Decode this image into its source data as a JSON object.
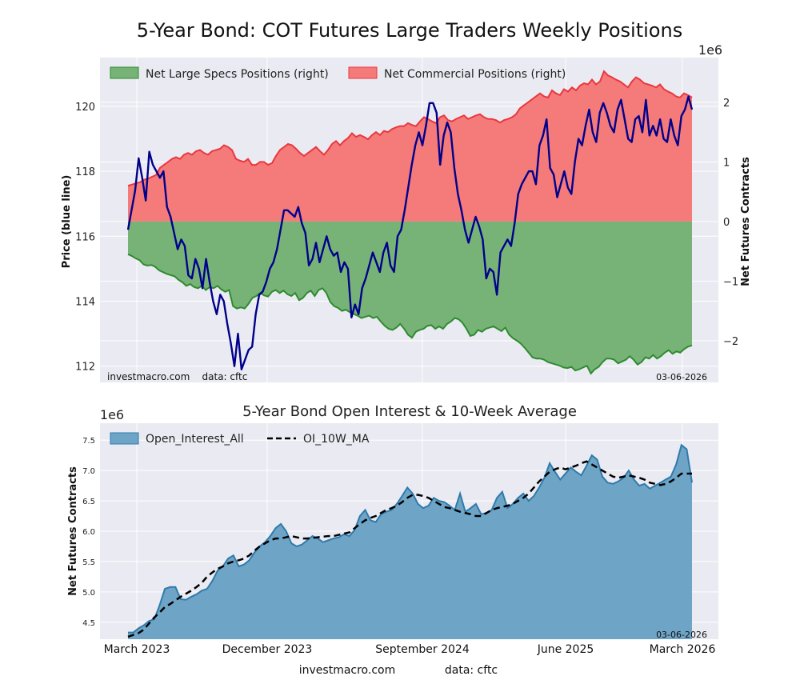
{
  "suptitle": "5-Year Bond: COT Futures Large Traders Weekly Positions",
  "footer": {
    "site": "investmacro.com",
    "source": "data: cftc"
  },
  "chart_data": [
    {
      "type": "area",
      "panel": "positions",
      "ylabel_left": "Price (blue line)",
      "ylabel_right": "Net Futures Contracts",
      "right_scale_label": "1e6",
      "ylim_left": [
        111.5,
        121.5
      ],
      "ylim_right": [
        -2.7,
        2.75
      ],
      "yticks_left": [
        "112",
        "114",
        "116",
        "118",
        "120"
      ],
      "yticks_right": [
        "−2",
        "−1",
        "0",
        "1",
        "2"
      ],
      "legend": [
        "Net Large Specs Positions (right)",
        "Net Commercial Positions (right)"
      ],
      "legend_position": "top-left",
      "watermark_left": "investmacro.com    data: cftc",
      "watermark_right": "03-06-2026",
      "colors": {
        "specs_fill": "#77b377",
        "specs_line": "#2e8b2e",
        "comm_fill": "#f57a7a",
        "comm_line": "#e8383d",
        "price": "#00008b"
      },
      "series": [
        {
          "name": "Net Large Specs Positions (right)",
          "unit": "1e6 contracts",
          "key": "specs",
          "values": [
            -0.55,
            -0.58,
            -0.62,
            -0.65,
            -0.72,
            -0.74,
            -0.73,
            -0.76,
            -0.82,
            -0.85,
            -0.88,
            -0.9,
            -0.92,
            -0.98,
            -1.02,
            -1.08,
            -1.05,
            -1.1,
            -1.12,
            -1.08,
            -1.15,
            -1.1,
            -1.12,
            -1.08,
            -1.14,
            -1.18,
            -1.15,
            -1.42,
            -1.46,
            -1.44,
            -1.46,
            -1.38,
            -1.28,
            -1.25,
            -1.2,
            -1.24,
            -1.26,
            -1.18,
            -1.15,
            -1.2,
            -1.16,
            -1.22,
            -1.25,
            -1.2,
            -1.32,
            -1.28,
            -1.2,
            -1.16,
            -1.25,
            -1.15,
            -1.12,
            -1.2,
            -1.35,
            -1.42,
            -1.45,
            -1.5,
            -1.48,
            -1.52,
            -1.55,
            -1.58,
            -1.62,
            -1.6,
            -1.58,
            -1.62,
            -1.6,
            -1.68,
            -1.75,
            -1.8,
            -1.82,
            -1.78,
            -1.72,
            -1.8,
            -1.9,
            -1.95,
            -1.85,
            -1.82,
            -1.8,
            -1.75,
            -1.74,
            -1.8,
            -1.76,
            -1.8,
            -1.72,
            -1.68,
            -1.62,
            -1.64,
            -1.7,
            -1.8,
            -1.92,
            -1.9,
            -1.82,
            -1.85,
            -1.8,
            -1.78,
            -1.76,
            -1.8,
            -1.84,
            -1.78,
            -1.9,
            -1.96,
            -2.0,
            -2.05,
            -2.12,
            -2.2,
            -2.28,
            -2.3,
            -2.3,
            -2.32,
            -2.36,
            -2.38,
            -2.4,
            -2.42,
            -2.45,
            -2.46,
            -2.44,
            -2.5,
            -2.48,
            -2.45,
            -2.42,
            -2.55,
            -2.48,
            -2.44,
            -2.36,
            -2.3,
            -2.3,
            -2.32,
            -2.38,
            -2.35,
            -2.32,
            -2.26,
            -2.32,
            -2.4,
            -2.36,
            -2.28,
            -2.3,
            -2.24,
            -2.3,
            -2.26,
            -2.2,
            -2.16,
            -2.22,
            -2.18,
            -2.2,
            -2.14,
            -2.1,
            -2.08
          ]
        },
        {
          "name": "Net Commercial Positions (right)",
          "unit": "1e6 contracts",
          "key": "commercial",
          "values": [
            0.6,
            0.62,
            0.64,
            0.66,
            0.7,
            0.72,
            0.75,
            0.78,
            0.9,
            0.95,
            1.0,
            1.05,
            1.08,
            1.05,
            1.12,
            1.15,
            1.12,
            1.18,
            1.2,
            1.15,
            1.12,
            1.18,
            1.2,
            1.22,
            1.28,
            1.25,
            1.2,
            1.05,
            1.02,
            1.0,
            1.05,
            0.95,
            0.95,
            1.0,
            1.0,
            0.95,
            0.98,
            1.1,
            1.2,
            1.25,
            1.3,
            1.28,
            1.22,
            1.15,
            1.1,
            1.15,
            1.2,
            1.25,
            1.18,
            1.12,
            1.2,
            1.3,
            1.35,
            1.28,
            1.35,
            1.4,
            1.48,
            1.42,
            1.45,
            1.42,
            1.38,
            1.45,
            1.5,
            1.45,
            1.52,
            1.5,
            1.55,
            1.58,
            1.6,
            1.6,
            1.65,
            1.62,
            1.6,
            1.68,
            1.75,
            1.72,
            1.68,
            1.65,
            1.75,
            1.78,
            1.7,
            1.68,
            1.72,
            1.75,
            1.78,
            1.72,
            1.75,
            1.78,
            1.8,
            1.75,
            1.72,
            1.72,
            1.7,
            1.66,
            1.7,
            1.72,
            1.75,
            1.8,
            1.9,
            1.95,
            2.0,
            2.05,
            2.1,
            2.15,
            2.1,
            2.08,
            2.2,
            2.15,
            2.12,
            2.22,
            2.18,
            2.25,
            2.2,
            2.28,
            2.32,
            2.3,
            2.38,
            2.3,
            2.35,
            2.52,
            2.45,
            2.42,
            2.38,
            2.35,
            2.3,
            2.25,
            2.35,
            2.42,
            2.38,
            2.32,
            2.3,
            2.28,
            2.25,
            2.3,
            2.22,
            2.18,
            2.15,
            2.1,
            2.08,
            2.15,
            2.12,
            2.08
          ]
        },
        {
          "name": "Price",
          "key": "price",
          "axis": "left",
          "values": [
            116.2,
            116.8,
            117.4,
            118.4,
            117.8,
            117.1,
            118.6,
            118.2,
            118.0,
            117.8,
            118.0,
            116.9,
            116.6,
            116.1,
            115.6,
            115.9,
            115.7,
            114.8,
            114.7,
            115.3,
            115.0,
            114.4,
            115.3,
            114.6,
            114.0,
            113.6,
            114.2,
            114.0,
            113.3,
            112.7,
            112.0,
            113.0,
            111.9,
            112.2,
            112.5,
            112.6,
            113.6,
            114.2,
            114.3,
            114.6,
            115.0,
            115.2,
            115.6,
            116.2,
            116.8,
            116.8,
            116.7,
            116.6,
            116.9,
            116.4,
            116.1,
            115.1,
            115.3,
            115.8,
            115.2,
            115.6,
            116.0,
            115.6,
            115.4,
            115.5,
            114.9,
            115.2,
            115.0,
            113.5,
            113.9,
            113.6,
            114.4,
            114.7,
            115.1,
            115.5,
            115.2,
            114.9,
            115.5,
            115.8,
            115.1,
            114.9,
            116.0,
            116.2,
            116.8,
            117.5,
            118.2,
            118.8,
            119.2,
            118.8,
            119.4,
            120.1,
            120.1,
            119.8,
            118.2,
            119.1,
            119.5,
            119.2,
            118.1,
            117.3,
            116.8,
            116.2,
            115.8,
            116.2,
            116.6,
            116.3,
            115.9,
            114.7,
            115.0,
            114.9,
            114.2,
            115.5,
            115.7,
            115.9,
            115.7,
            116.4,
            117.3,
            117.6,
            117.8,
            118.0,
            118.0,
            117.6,
            118.8,
            119.1,
            119.6,
            118.1,
            117.9,
            117.2,
            117.6,
            118.0,
            117.5,
            117.3,
            118.3,
            119.0,
            118.8,
            119.4,
            119.9,
            119.2,
            118.9,
            119.8,
            120.1,
            119.8,
            119.4,
            119.2,
            119.9,
            120.2,
            119.6,
            119.0,
            118.9,
            119.6,
            119.7,
            119.2,
            120.2,
            119.1,
            119.4,
            119.1,
            119.6,
            119.0,
            118.9,
            119.6,
            119.1,
            118.8,
            119.7,
            119.9,
            120.3,
            119.9
          ]
        }
      ]
    },
    {
      "type": "area",
      "panel": "open_interest",
      "title": "5-Year Bond Open Interest & 10-Week Average",
      "ylabel": "Net Futures Contracts",
      "scale_label": "1e6",
      "ylim": [
        4.22,
        7.78
      ],
      "yticks": [
        "4.5",
        "5.0",
        "5.5",
        "6.0",
        "6.5",
        "7.0",
        "7.5"
      ],
      "xticks": [
        "March 2023",
        "December 2023",
        "September 2024",
        "June 2025",
        "March 2026"
      ],
      "legend": [
        "Open_Interest_All",
        "OI_10W_MA"
      ],
      "legend_position": "top-left",
      "watermark_right": "03-06-2026",
      "colors": {
        "oi_fill": "#6ea5c7",
        "oi_line": "#2f7aaa",
        "ma_line": "#000000"
      },
      "series": [
        {
          "name": "Open_Interest_All",
          "unit": "1e6 contracts",
          "key": "oi",
          "values": [
            4.33,
            4.33,
            4.4,
            4.45,
            4.52,
            4.55,
            4.78,
            5.05,
            5.08,
            5.08,
            4.88,
            4.87,
            4.92,
            4.96,
            5.02,
            5.05,
            5.18,
            5.35,
            5.42,
            5.55,
            5.6,
            5.42,
            5.45,
            5.52,
            5.65,
            5.75,
            5.82,
            5.92,
            6.05,
            6.12,
            6.0,
            5.8,
            5.75,
            5.78,
            5.85,
            5.92,
            5.88,
            5.82,
            5.85,
            5.88,
            5.9,
            5.95,
            5.92,
            6.02,
            6.25,
            6.35,
            6.18,
            6.15,
            6.28,
            6.32,
            6.35,
            6.45,
            6.58,
            6.72,
            6.62,
            6.45,
            6.38,
            6.42,
            6.55,
            6.5,
            6.48,
            6.42,
            6.35,
            6.62,
            6.32,
            6.38,
            6.45,
            6.28,
            6.3,
            6.35,
            6.55,
            6.65,
            6.38,
            6.45,
            6.55,
            6.62,
            6.5,
            6.58,
            6.72,
            6.88,
            7.12,
            6.98,
            6.85,
            6.95,
            7.05,
            6.98,
            6.92,
            7.08,
            7.25,
            7.18,
            6.9,
            6.8,
            6.78,
            6.82,
            6.88,
            7.0,
            6.85,
            6.75,
            6.78,
            6.7,
            6.75,
            6.8,
            6.85,
            6.9,
            7.1,
            7.42,
            7.35,
            6.8
          ]
        },
        {
          "name": "OI_10W_MA",
          "unit": "1e6 contracts",
          "key": "ma",
          "values": [
            4.26,
            4.29,
            4.32,
            4.38,
            4.48,
            4.58,
            4.66,
            4.75,
            4.8,
            4.86,
            4.92,
            4.97,
            5.02,
            5.08,
            5.15,
            5.25,
            5.32,
            5.38,
            5.42,
            5.47,
            5.5,
            5.52,
            5.55,
            5.6,
            5.68,
            5.75,
            5.8,
            5.85,
            5.88,
            5.88,
            5.9,
            5.92,
            5.9,
            5.88,
            5.88,
            5.89,
            5.9,
            5.91,
            5.92,
            5.92,
            5.94,
            5.96,
            5.98,
            6.05,
            6.12,
            6.18,
            6.22,
            6.25,
            6.3,
            6.35,
            6.38,
            6.42,
            6.48,
            6.55,
            6.6,
            6.6,
            6.58,
            6.55,
            6.5,
            6.45,
            6.4,
            6.38,
            6.35,
            6.32,
            6.3,
            6.28,
            6.25,
            6.25,
            6.3,
            6.35,
            6.38,
            6.4,
            6.42,
            6.45,
            6.5,
            6.55,
            6.62,
            6.72,
            6.82,
            6.9,
            6.98,
            7.02,
            7.05,
            7.02,
            7.05,
            7.08,
            7.12,
            7.15,
            7.1,
            7.05,
            7.0,
            6.95,
            6.9,
            6.88,
            6.9,
            6.92,
            6.9,
            6.88,
            6.85,
            6.8,
            6.78,
            6.76,
            6.78,
            6.82,
            6.88,
            6.95,
            6.95,
            6.95
          ]
        }
      ]
    }
  ]
}
